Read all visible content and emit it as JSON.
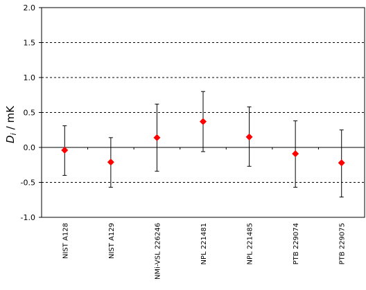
{
  "chart_data": {
    "type": "scatter",
    "title": "",
    "xlabel": "",
    "ylabel": {
      "symbol": "D",
      "subscript": "i",
      "unit": "/ mK"
    },
    "ylim": [
      -1.0,
      2.0
    ],
    "yticks": [
      2.0,
      1.5,
      1.0,
      0.5,
      0.0,
      -0.5,
      -1.0
    ],
    "ytick_labels": [
      "2.0",
      "1.5",
      "1.0",
      "0.5",
      "0.0",
      "-0.5",
      "-1.0"
    ],
    "grid": "horizontal dashed at 0.5, 1.0, 1.5 and -0.5",
    "marker": {
      "shape": "diamond",
      "color": "#ff0000"
    },
    "errorbar_color": "#000000",
    "categories": [
      "NIST A128",
      "NIST A129",
      "NMi-VSL 226246",
      "NPL 221481",
      "NPL 221485",
      "PTB 229074",
      "PTB 229075"
    ],
    "values": [
      -0.04,
      -0.21,
      0.14,
      0.37,
      0.15,
      -0.09,
      -0.22
    ],
    "err_upper": [
      0.31,
      0.14,
      0.62,
      0.8,
      0.58,
      0.38,
      0.25
    ],
    "err_lower": [
      -0.4,
      -0.57,
      -0.34,
      -0.06,
      -0.27,
      -0.57,
      -0.71
    ]
  }
}
